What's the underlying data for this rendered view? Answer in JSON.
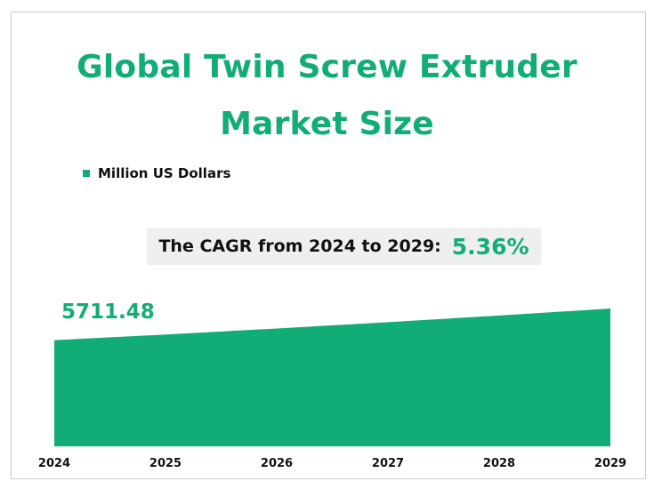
{
  "title": {
    "line1": "Global Twin Screw Extruder",
    "line2": "Market Size"
  },
  "legend": {
    "label": "Million US Dollars"
  },
  "cagr": {
    "label": "The CAGR from 2024 to 2029:",
    "value": "5.36%"
  },
  "first_value_label": "5711.48",
  "colors": {
    "accent": "#12ad76",
    "cagr_box": "#efefef"
  },
  "chart_data": {
    "type": "area",
    "x": [
      "2024",
      "2025",
      "2026",
      "2027",
      "2028",
      "2029"
    ],
    "series": [
      {
        "name": "Million US Dollars",
        "values": [
          5711.48,
          6017.5,
          6340,
          6679.8,
          7037.7,
          7414.8
        ]
      }
    ],
    "ylim": [
      0,
      7414.8
    ]
  }
}
